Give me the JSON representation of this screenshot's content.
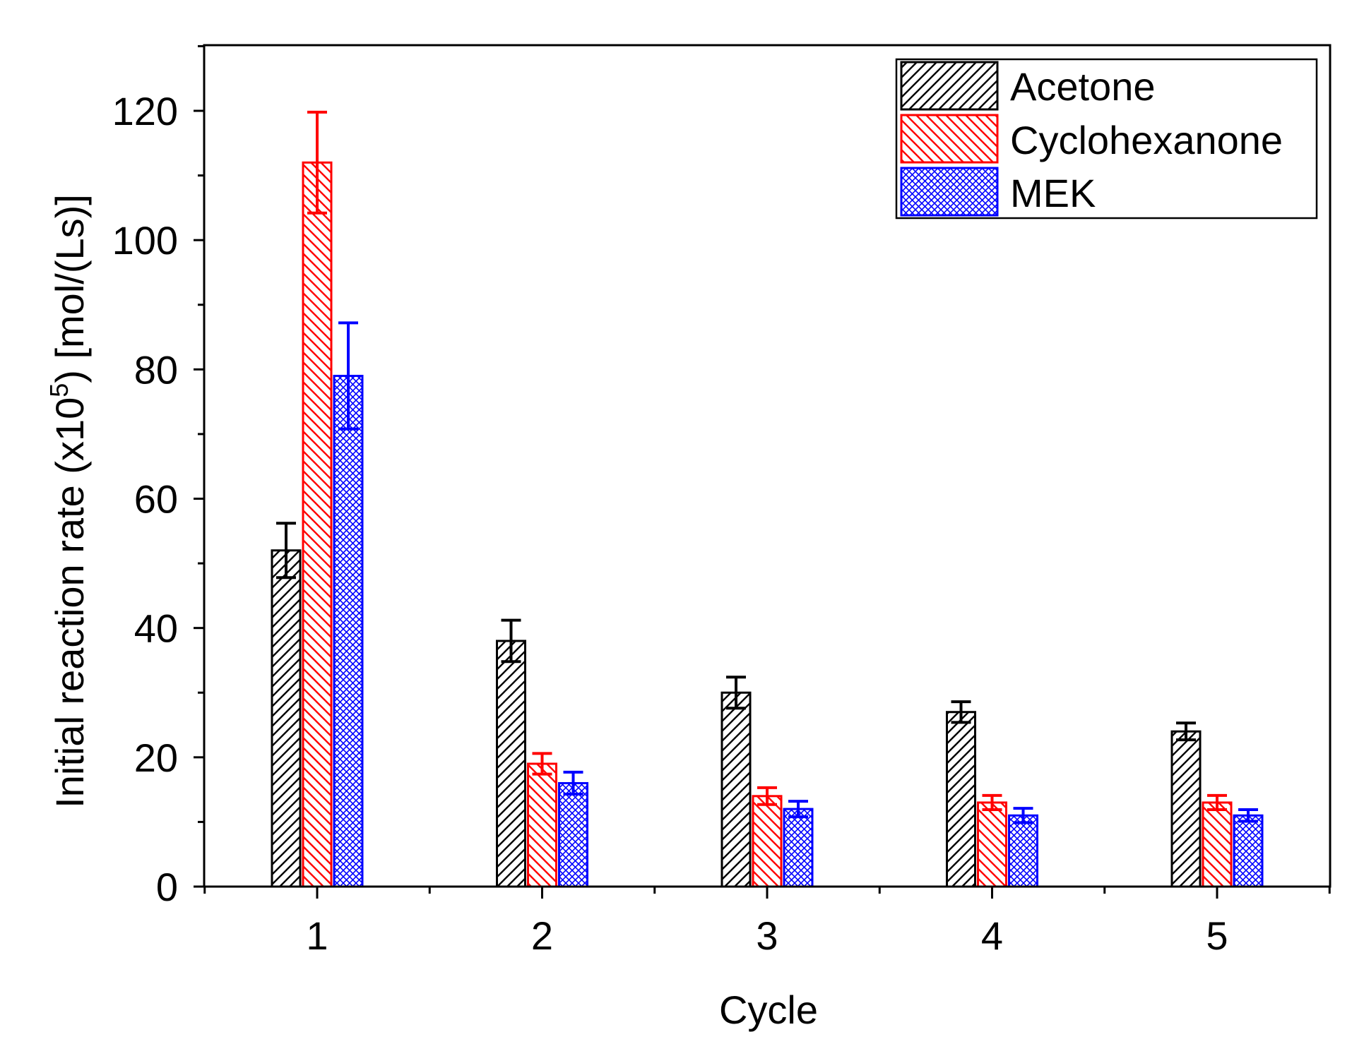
{
  "chart_data": {
    "type": "bar",
    "title": "",
    "xlabel": "Cycle",
    "ylabel_main": "Initial reaction rate (x10",
    "ylabel_sup": "5",
    "ylabel_tail": ") [mol/(Ls)]",
    "categories": [
      "1",
      "2",
      "3",
      "4",
      "5"
    ],
    "ylim": [
      0,
      130
    ],
    "yticks": [
      0,
      20,
      40,
      60,
      80,
      100,
      120
    ],
    "ytick_labels": [
      "0",
      "20",
      "40",
      "60",
      "80",
      "100",
      "120"
    ],
    "legend_position": "top-right",
    "series": [
      {
        "name": "Acetone",
        "color": "#000000",
        "pattern": "diagonal-up",
        "values": [
          52,
          38,
          30,
          27,
          24
        ],
        "errors": [
          4.2,
          3.2,
          2.4,
          1.6,
          1.3
        ]
      },
      {
        "name": "Cyclohexanone",
        "color": "#ff0000",
        "pattern": "diagonal-down",
        "values": [
          112,
          19,
          14,
          13,
          13
        ],
        "errors": [
          7.8,
          1.6,
          1.3,
          1.1,
          1.1
        ]
      },
      {
        "name": "MEK",
        "color": "#0000ff",
        "pattern": "crosshatch",
        "values": [
          79,
          16,
          12,
          11,
          11
        ],
        "errors": [
          8.2,
          1.7,
          1.2,
          1.1,
          0.9
        ]
      }
    ]
  }
}
